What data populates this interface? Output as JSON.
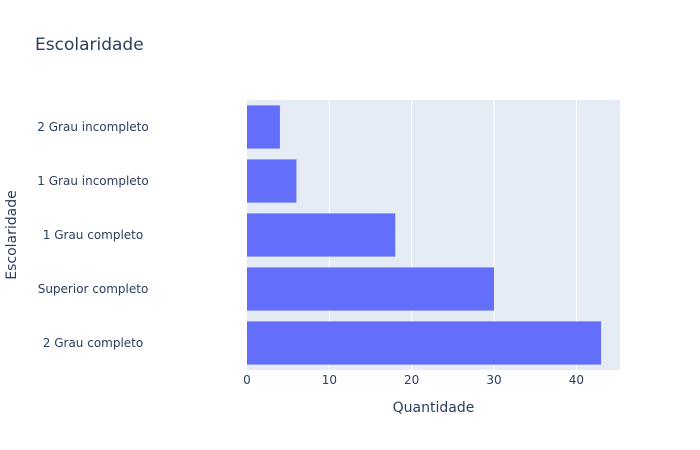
{
  "chart_data": {
    "type": "bar",
    "orientation": "horizontal",
    "title": "Escolaridade",
    "xlabel": "Quantidade",
    "ylabel": "Escolaridade",
    "categories": [
      "2 Grau completo",
      "Superior completo",
      "1 Grau completo",
      "1 Grau incompleto",
      "2 Grau incompleto"
    ],
    "values": [
      43,
      30,
      18,
      6,
      4
    ],
    "xlim": [
      0,
      45.3
    ],
    "xticks": [
      0,
      10,
      20,
      30,
      40
    ],
    "grid": true,
    "bar_color": "#636efa",
    "plot_bg": "#e5ecf6"
  }
}
